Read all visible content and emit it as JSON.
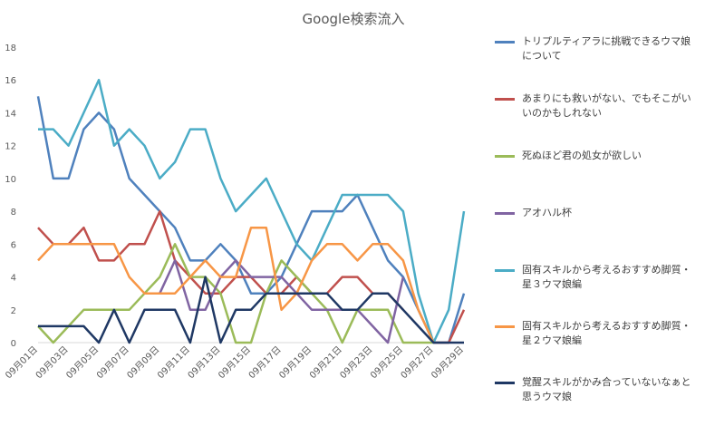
{
  "chart_data": {
    "type": "line",
    "title": "Google検索流入",
    "xlabel": "",
    "ylabel": "",
    "ylim": [
      0,
      18
    ],
    "yticks": [
      0,
      2,
      4,
      6,
      8,
      10,
      12,
      14,
      16,
      18
    ],
    "grid": false,
    "legend_position": "right",
    "categories": [
      "09月01日",
      "09月02日",
      "09月03日",
      "09月04日",
      "09月05日",
      "09月06日",
      "09月07日",
      "09月08日",
      "09月09日",
      "09月10日",
      "09月11日",
      "09月12日",
      "09月13日",
      "09月14日",
      "09月15日",
      "09月16日",
      "09月17日",
      "09月18日",
      "09月19日",
      "09月20日",
      "09月21日",
      "09月22日",
      "09月23日",
      "09月24日",
      "09月25日",
      "09月26日",
      "09月27日",
      "09月28日",
      "09月29日"
    ],
    "tick_labels": [
      "09月01日",
      "09月03日",
      "09月05日",
      "09月07日",
      "09月09日",
      "09月11日",
      "09月13日",
      "09月15日",
      "09月17日",
      "09月19日",
      "09月21日",
      "09月23日",
      "09月25日",
      "09月27日",
      "09月29日"
    ],
    "series": [
      {
        "name": "トリプルティアラに挑戦できるウマ娘について",
        "color": "#4f81bd",
        "values": [
          15,
          10,
          10,
          13,
          14,
          13,
          10,
          9,
          8,
          7,
          5,
          5,
          6,
          5,
          3,
          3,
          4,
          6,
          8,
          8,
          8,
          9,
          7,
          5,
          4,
          2,
          0,
          0,
          3
        ]
      },
      {
        "name": "あまりにも救いがない、でもそこがいいのかもしれない",
        "color": "#c0504d",
        "values": [
          7,
          6,
          6,
          7,
          5,
          5,
          6,
          6,
          8,
          5,
          4,
          3,
          3,
          4,
          4,
          3,
          3,
          4,
          3,
          3,
          4,
          4,
          3,
          3,
          2,
          null,
          0,
          0,
          2
        ]
      },
      {
        "name": "死ぬほど君の処女が欲しい",
        "color": "#9bbb59",
        "values": [
          1,
          0,
          1,
          2,
          2,
          2,
          2,
          3,
          4,
          6,
          4,
          4,
          3,
          0,
          0,
          3,
          5,
          4,
          3,
          2,
          0,
          2,
          2,
          2,
          0,
          0,
          0,
          null,
          null
        ]
      },
      {
        "name": "アオハル杯",
        "color": "#8064a2",
        "values": [
          null,
          null,
          null,
          null,
          null,
          null,
          null,
          null,
          3,
          5,
          2,
          2,
          4,
          5,
          4,
          4,
          4,
          3,
          2,
          2,
          2,
          2,
          1,
          0,
          4,
          null,
          0,
          null,
          null
        ]
      },
      {
        "name": "固有スキルから考えるおすすめ脚質・星３ウマ娘編",
        "color": "#4bacc6",
        "values": [
          13,
          13,
          12,
          14,
          16,
          12,
          13,
          12,
          10,
          11,
          13,
          13,
          10,
          8,
          9,
          10,
          8,
          6,
          5,
          7,
          9,
          9,
          9,
          9,
          8,
          3,
          0,
          2,
          8
        ]
      },
      {
        "name": "固有スキルから考えるおすすめ脚質・星２ウマ娘編",
        "color": "#f79646",
        "values": [
          5,
          6,
          6,
          6,
          6,
          6,
          4,
          3,
          3,
          3,
          4,
          5,
          4,
          4,
          7,
          7,
          2,
          3,
          5,
          6,
          6,
          5,
          6,
          6,
          5,
          2,
          0,
          null,
          null
        ]
      },
      {
        "name": "覚醒スキルがかみ合っていないなぁと思うウマ娘",
        "color": "#1f3864",
        "values": [
          1,
          1,
          1,
          1,
          0,
          2,
          0,
          2,
          2,
          2,
          0,
          4,
          0,
          2,
          2,
          3,
          3,
          3,
          3,
          3,
          2,
          2,
          3,
          3,
          2,
          1,
          0,
          0,
          0
        ]
      }
    ]
  }
}
